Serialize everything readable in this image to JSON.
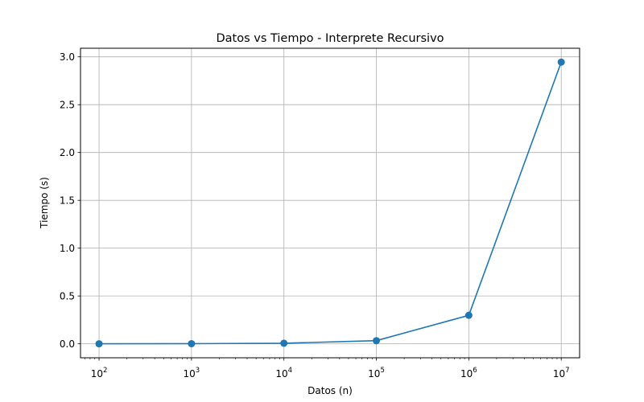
{
  "chart_data": {
    "type": "line",
    "title": "Datos vs Tiempo - Interprete Recursivo",
    "xlabel": "Datos (n)",
    "ylabel": "Tiempo (s)",
    "x_scale": "log",
    "grid": true,
    "x": [
      100,
      1000,
      10000,
      100000,
      1000000,
      10000000
    ],
    "series": [
      {
        "values": [
          0.0002,
          0.0015,
          0.006,
          0.033,
          0.298,
          2.945
        ],
        "color": "#1f77b4",
        "marker": "circle"
      }
    ],
    "xlim": [
      63,
      15800000
    ],
    "ylim": [
      -0.146,
      3.09
    ],
    "x_ticks": [
      {
        "value": 100,
        "base": "10",
        "exp": "2"
      },
      {
        "value": 1000,
        "base": "10",
        "exp": "3"
      },
      {
        "value": 10000,
        "base": "10",
        "exp": "4"
      },
      {
        "value": 100000,
        "base": "10",
        "exp": "5"
      },
      {
        "value": 1000000,
        "base": "10",
        "exp": "6"
      },
      {
        "value": 10000000,
        "base": "10",
        "exp": "7"
      }
    ],
    "y_ticks": [
      {
        "value": 0.0,
        "label": "0.0"
      },
      {
        "value": 0.5,
        "label": "0.5"
      },
      {
        "value": 1.0,
        "label": "1.0"
      },
      {
        "value": 1.5,
        "label": "1.5"
      },
      {
        "value": 2.0,
        "label": "2.0"
      },
      {
        "value": 2.5,
        "label": "2.5"
      },
      {
        "value": 3.0,
        "label": "3.0"
      }
    ]
  }
}
